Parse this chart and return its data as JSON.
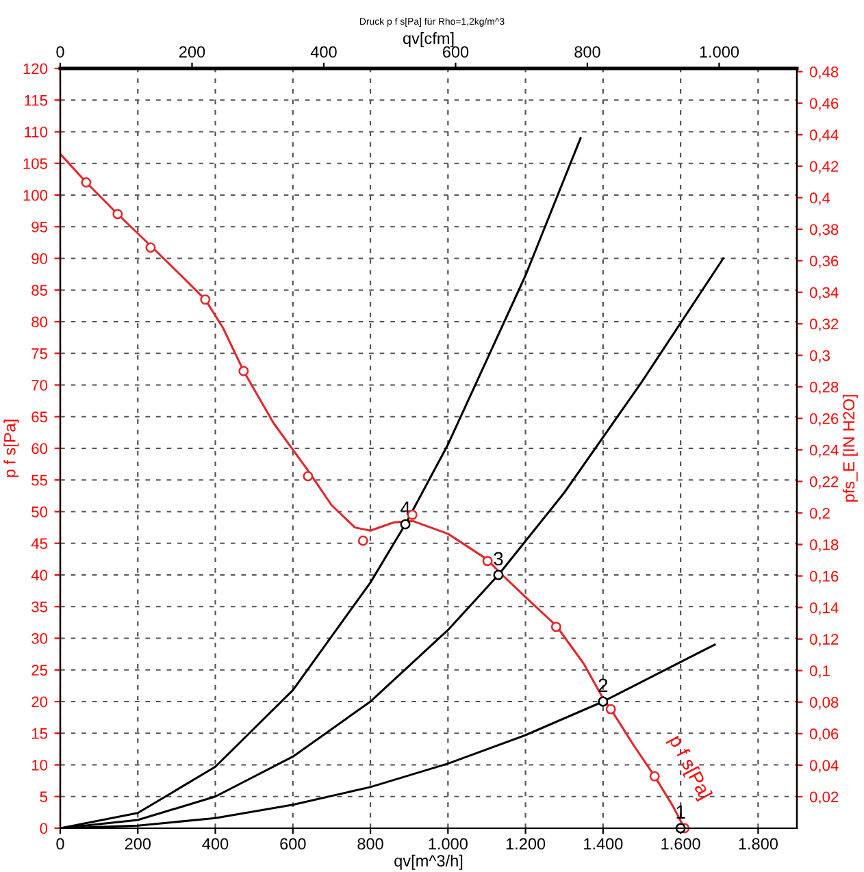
{
  "chart_data": {
    "type": "line",
    "title": "Druck p f s[Pa] für Rho=1,2kg/m^3",
    "xlabel": "qv[m^3/h]",
    "x2label": "qv[cfm]",
    "ylabel": "p f s[Pa]",
    "y2label": "pfs_E [IN H2O]",
    "xlim": [
      0,
      1900
    ],
    "xticks": [
      0,
      200,
      400,
      600,
      800,
      {
        "value": 1000,
        "label": "1.000"
      },
      {
        "value": 1200,
        "label": "1.200"
      },
      {
        "value": 1400,
        "label": "1.400"
      },
      {
        "value": 1600,
        "label": "1.600"
      },
      {
        "value": 1800,
        "label": "1.800"
      }
    ],
    "x2lim": [
      0,
      1118
    ],
    "x2ticks": [
      0,
      200,
      400,
      600,
      800,
      {
        "value": 1000,
        "label": "1.000"
      }
    ],
    "ylim": [
      0,
      120
    ],
    "yticks": [
      0,
      5,
      10,
      15,
      20,
      25,
      30,
      35,
      40,
      45,
      50,
      55,
      60,
      65,
      70,
      75,
      80,
      85,
      90,
      95,
      100,
      105,
      110,
      115,
      120
    ],
    "y2lim": [
      0,
      0.482
    ],
    "y2ticks": [
      {
        "value": 0.02,
        "label": "0,02"
      },
      {
        "value": 0.04,
        "label": "0,04"
      },
      {
        "value": 0.06,
        "label": "0,06"
      },
      {
        "value": 0.08,
        "label": "0,08"
      },
      {
        "value": 0.1,
        "label": "0,1"
      },
      {
        "value": 0.12,
        "label": "0,12"
      },
      {
        "value": 0.14,
        "label": "0,14"
      },
      {
        "value": 0.16,
        "label": "0,16"
      },
      {
        "value": 0.18,
        "label": "0,18"
      },
      {
        "value": 0.2,
        "label": "0,2"
      },
      {
        "value": 0.22,
        "label": "0,22"
      },
      {
        "value": 0.24,
        "label": "0,24"
      },
      {
        "value": 0.26,
        "label": "0,26"
      },
      {
        "value": 0.28,
        "label": "0,28"
      },
      {
        "value": 0.3,
        "label": "0,3"
      },
      {
        "value": 0.32,
        "label": "0,32"
      },
      {
        "value": 0.34,
        "label": "0,34"
      },
      {
        "value": 0.36,
        "label": "0,36"
      },
      {
        "value": 0.38,
        "label": "0,38"
      },
      {
        "value": 0.4,
        "label": "0,4"
      },
      {
        "value": 0.42,
        "label": "0,42"
      },
      {
        "value": 0.44,
        "label": "0,44"
      },
      {
        "value": 0.46,
        "label": "0,46"
      },
      {
        "value": 0.48,
        "label": "0,48"
      }
    ],
    "grid": true,
    "legend": false,
    "line_style": "solid",
    "series": [
      {
        "color": "#e3262b",
        "marker": "none",
        "x": [
          0,
          67,
          148,
          233,
          300,
          374,
          420,
          473,
          550,
          639,
          700,
          760,
          800,
          860,
          910,
          1000,
          1100,
          1140,
          1200,
          1279,
          1350,
          1400,
          1420,
          1480,
          1533,
          1580,
          1610
        ],
        "values": [
          106.5,
          102,
          97,
          92,
          88,
          83.5,
          79,
          72.2,
          64,
          56.5,
          51,
          47.5,
          47,
          48.3,
          48.5,
          46.5,
          42.5,
          40,
          36.5,
          32,
          26,
          20.5,
          18.8,
          13,
          8.2,
          3.5,
          0
        ]
      },
      {
        "type": "scatter",
        "color": "#e3262b",
        "marker": "circle",
        "x": [
          67,
          148,
          233,
          374,
          473,
          639,
          781,
          908,
          1102,
          1279,
          1420,
          1533,
          1610
        ],
        "values": [
          102,
          97,
          91.7,
          83.5,
          72.2,
          55.6,
          45.4,
          49.5,
          42.2,
          31.8,
          18.8,
          8.2,
          0
        ]
      },
      {
        "color": "#000000",
        "marker": "none",
        "x": [
          0,
          200,
          400,
          600,
          800,
          890,
          1000,
          1200,
          1342
        ],
        "values": [
          0,
          2.4,
          9.7,
          21.8,
          38.8,
          48,
          60.6,
          87.3,
          109
        ]
      },
      {
        "color": "#000000",
        "marker": "none",
        "x": [
          0,
          200,
          400,
          600,
          800,
          1000,
          1130,
          1300,
          1500,
          1710
        ],
        "values": [
          0,
          1.3,
          5,
          11.3,
          20,
          31.3,
          40,
          53,
          70.5,
          90
        ]
      },
      {
        "color": "#000000",
        "marker": "none",
        "x": [
          0,
          200,
          400,
          600,
          800,
          1000,
          1200,
          1400,
          1688
        ],
        "values": [
          0,
          0.4,
          1.6,
          3.7,
          6.5,
          10.2,
          14.7,
          20,
          29
        ]
      },
      {
        "type": "scatter",
        "color": "#000000",
        "marker": "circle",
        "x": [
          1600,
          1400,
          1130,
          890
        ],
        "values": [
          0,
          20,
          40,
          48
        ]
      }
    ],
    "annotations": [
      {
        "text": "1",
        "x": 1600,
        "y": 0
      },
      {
        "text": "2",
        "x": 1400,
        "y": 20
      },
      {
        "text": "3",
        "x": 1130,
        "y": 40
      },
      {
        "text": "4",
        "x": 890,
        "y": 48
      },
      {
        "text": "p f s[Pa]",
        "x": 1560,
        "y": 4
      }
    ]
  }
}
